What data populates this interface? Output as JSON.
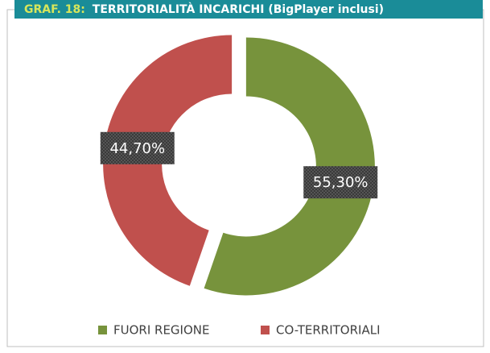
{
  "chart_data": {
    "type": "donut",
    "label": "GRAF. 18:",
    "title": "TERRITORIALITÀ INCARICHI (BigPlayer inclusi)",
    "categories": [
      "FUORI REGIONE",
      "CO-TERRITORIALI"
    ],
    "values": [
      55.3,
      44.7
    ],
    "value_labels": [
      "55,30%",
      "44,70%"
    ],
    "colors": [
      "#77933c",
      "#c0504d"
    ],
    "legend": "bottom"
  }
}
